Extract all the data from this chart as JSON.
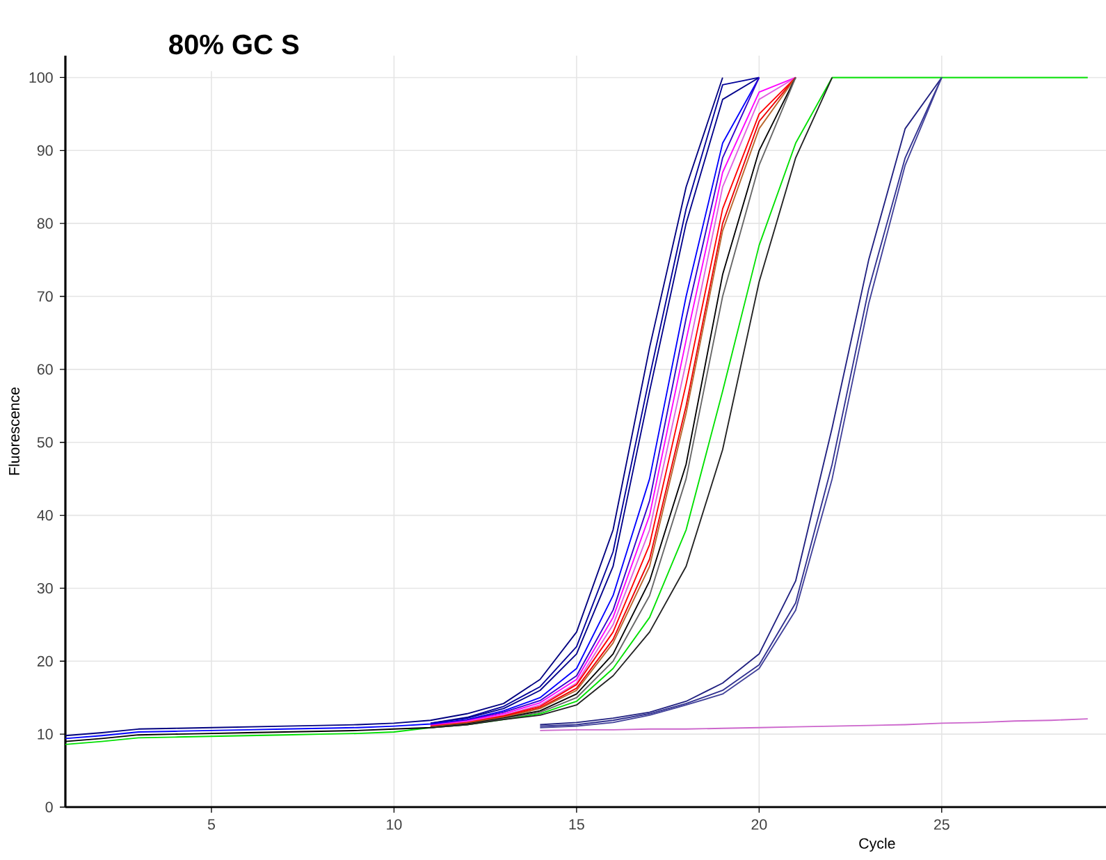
{
  "chart_data": {
    "type": "line",
    "title": "80% GC S",
    "xlabel": "Cycle",
    "ylabel": "Fluorescence",
    "x": [
      1,
      2,
      3,
      4,
      5,
      6,
      7,
      8,
      9,
      10,
      11,
      12,
      13,
      14,
      15,
      16,
      17,
      18,
      19,
      20,
      21,
      22,
      23,
      24,
      25,
      26,
      27,
      28,
      29
    ],
    "xlim": [
      1,
      29.5
    ],
    "ylim": [
      0,
      103
    ],
    "xticks": [
      5,
      10,
      15,
      20,
      25
    ],
    "yticks": [
      0,
      10,
      20,
      30,
      40,
      50,
      60,
      70,
      80,
      90,
      100
    ],
    "grid": true,
    "marker": "none",
    "line_style": "solid",
    "series": [
      {
        "color": "#00e000",
        "values": [
          8.6,
          9.0,
          9.5,
          9.6,
          9.7,
          9.8,
          9.9,
          10.0,
          10.1,
          10.3,
          10.9,
          11.3,
          12,
          12.8,
          14.5,
          19,
          26,
          38,
          57,
          77,
          91,
          100,
          100,
          100,
          100,
          100,
          100,
          100,
          100
        ]
      },
      {
        "color": "#cc66cc",
        "values": [
          null,
          null,
          null,
          null,
          null,
          null,
          null,
          null,
          null,
          null,
          null,
          null,
          null,
          10.5,
          10.6,
          10.6,
          10.7,
          10.7,
          10.8,
          10.9,
          11.0,
          11.1,
          11.2,
          11.3,
          11.5,
          11.6,
          11.8,
          11.9,
          12.1
        ]
      },
      {
        "color": "#000080",
        "values": [
          9.8,
          10.2,
          10.7,
          10.8,
          10.9,
          11.0,
          11.1,
          11.2,
          11.3,
          11.5,
          11.9,
          12.8,
          14.2,
          17.5,
          24,
          38,
          63,
          85,
          100,
          null,
          null,
          null,
          null,
          null,
          null,
          null,
          null,
          null,
          null
        ]
      },
      {
        "color": "#000099",
        "values": [
          null,
          null,
          null,
          null,
          null,
          null,
          null,
          null,
          null,
          null,
          11.5,
          12.3,
          13.8,
          16.5,
          22,
          35,
          59,
          82,
          99,
          100,
          null,
          null,
          null,
          null,
          null,
          null,
          null,
          null,
          null
        ]
      },
      {
        "color": "#00008b",
        "values": [
          null,
          null,
          null,
          null,
          null,
          null,
          null,
          null,
          null,
          null,
          11.5,
          12.2,
          13.5,
          16,
          21,
          33,
          57,
          80,
          97,
          100,
          null,
          null,
          null,
          null,
          null,
          null,
          null,
          null,
          null
        ]
      },
      {
        "color": "#0000ff",
        "values": [
          9.4,
          9.8,
          10.3,
          10.4,
          10.5,
          10.6,
          10.7,
          10.8,
          10.9,
          11.1,
          11.4,
          12,
          13.2,
          15,
          19,
          29,
          45,
          70,
          91,
          100,
          null,
          null,
          null,
          null,
          null,
          null,
          null,
          null,
          null
        ]
      },
      {
        "color": "#3300cc",
        "values": [
          null,
          null,
          null,
          null,
          null,
          null,
          null,
          null,
          null,
          null,
          11.3,
          11.9,
          13,
          14.6,
          18,
          27,
          42,
          67,
          89,
          100,
          null,
          null,
          null,
          null,
          null,
          null,
          null,
          null,
          null
        ]
      },
      {
        "color": "#ff00ff",
        "values": [
          null,
          null,
          null,
          null,
          null,
          null,
          null,
          null,
          null,
          null,
          11.2,
          11.8,
          12.8,
          14.3,
          17.5,
          26,
          40,
          64,
          87,
          98,
          100,
          null,
          null,
          null,
          null,
          null,
          null,
          null,
          null
        ]
      },
      {
        "color": "#e060e0",
        "values": [
          null,
          null,
          null,
          null,
          null,
          null,
          null,
          null,
          null,
          null,
          11.1,
          11.7,
          12.6,
          14,
          17,
          25,
          38,
          61,
          85,
          97,
          100,
          null,
          null,
          null,
          null,
          null,
          null,
          null,
          null
        ]
      },
      {
        "color": "#ff0000",
        "values": [
          null,
          null,
          null,
          null,
          null,
          null,
          null,
          null,
          null,
          null,
          11.1,
          11.6,
          12.5,
          13.8,
          16.8,
          24,
          36,
          58,
          82,
          95,
          100,
          null,
          null,
          null,
          null,
          null,
          null,
          null,
          null
        ]
      },
      {
        "color": "#ee0000",
        "values": [
          null,
          null,
          null,
          null,
          null,
          null,
          null,
          null,
          null,
          null,
          11,
          11.5,
          12.4,
          13.6,
          16.3,
          23,
          34,
          55,
          80,
          94,
          100,
          null,
          null,
          null,
          null,
          null,
          null,
          null,
          null
        ]
      },
      {
        "color": "#b8672e",
        "values": [
          null,
          null,
          null,
          null,
          null,
          null,
          null,
          null,
          null,
          null,
          11,
          11.5,
          12.3,
          13.5,
          16,
          22.5,
          33,
          54,
          79,
          93,
          100,
          null,
          null,
          null,
          null,
          null,
          null,
          null,
          null
        ]
      },
      {
        "color": "#000000",
        "values": [
          9.0,
          9.4,
          9.9,
          10.0,
          10.1,
          10.2,
          10.3,
          10.4,
          10.5,
          10.7,
          10.9,
          11.4,
          12.2,
          13.2,
          15.5,
          21,
          31,
          47,
          73,
          90,
          100,
          null,
          null,
          null,
          null,
          null,
          null,
          null,
          null
        ]
      },
      {
        "color": "#666666",
        "values": [
          null,
          null,
          null,
          null,
          null,
          null,
          null,
          null,
          null,
          null,
          10.9,
          11.3,
          12.1,
          13,
          15,
          20,
          29,
          45,
          70,
          88,
          100,
          null,
          null,
          null,
          null,
          null,
          null,
          null,
          null
        ]
      },
      {
        "color": "#222222",
        "values": [
          null,
          null,
          null,
          null,
          null,
          null,
          null,
          null,
          null,
          null,
          10.9,
          11.3,
          12,
          12.6,
          14,
          18,
          24,
          33,
          49,
          72,
          89,
          100,
          null,
          null,
          null,
          null,
          null,
          null,
          null
        ]
      },
      {
        "color": "#202080",
        "values": [
          null,
          null,
          null,
          null,
          null,
          null,
          null,
          null,
          null,
          null,
          null,
          null,
          null,
          11.3,
          11.6,
          12.2,
          13,
          14.5,
          17,
          21,
          31,
          52,
          75,
          93,
          100,
          null,
          null,
          null,
          null
        ]
      },
      {
        "color": "#303090",
        "values": [
          null,
          null,
          null,
          null,
          null,
          null,
          null,
          null,
          null,
          null,
          null,
          null,
          null,
          11.1,
          11.3,
          11.9,
          12.8,
          14.2,
          16,
          19.5,
          28,
          47,
          71,
          89,
          100,
          null,
          null,
          null,
          null
        ]
      },
      {
        "color": "#404099",
        "values": [
          null,
          null,
          null,
          null,
          null,
          null,
          null,
          null,
          null,
          null,
          null,
          null,
          null,
          10.9,
          11.1,
          11.6,
          12.6,
          14,
          15.5,
          19,
          27,
          45,
          69,
          88,
          100,
          null,
          null,
          null,
          null
        ]
      }
    ]
  }
}
